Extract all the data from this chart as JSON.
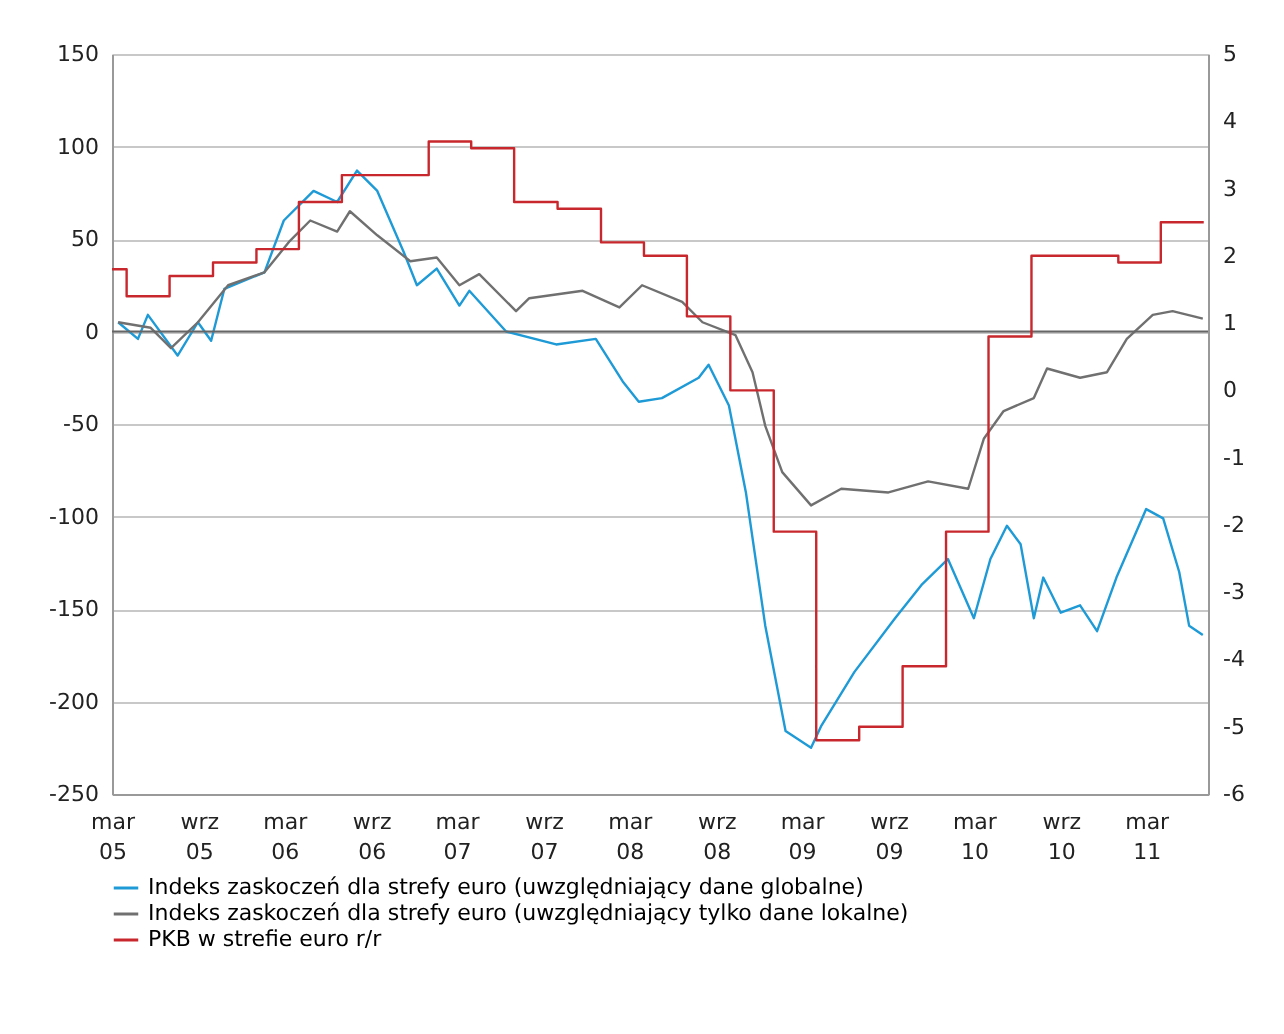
{
  "chart_data": {
    "type": "line",
    "xlim": [
      "2005-03-01",
      "2011-07-10"
    ],
    "xticks": [
      {
        "value": "2005-03-01",
        "label": "mar 05"
      },
      {
        "value": "2005-09-01",
        "label": "wrz 05"
      },
      {
        "value": "2006-03-01",
        "label": "mar 06"
      },
      {
        "value": "2006-09-01",
        "label": "wrz 06"
      },
      {
        "value": "2007-03-01",
        "label": "mar 07"
      },
      {
        "value": "2007-09-01",
        "label": "wrz 07"
      },
      {
        "value": "2008-03-01",
        "label": "mar 08"
      },
      {
        "value": "2008-09-01",
        "label": "wrz 08"
      },
      {
        "value": "2009-03-01",
        "label": "mar 09"
      },
      {
        "value": "2009-09-01",
        "label": "wrz 09"
      },
      {
        "value": "2010-03-01",
        "label": "mar 10"
      },
      {
        "value": "2010-09-01",
        "label": "wrz 10"
      },
      {
        "value": "2011-03-01",
        "label": "mar 11"
      }
    ],
    "ylim": [
      -250,
      150
    ],
    "yticks": [
      -250,
      -200,
      -150,
      -100,
      -50,
      0,
      50,
      100,
      150
    ],
    "y2lim": [
      -6,
      5
    ],
    "y2ticks": [
      -6,
      -5,
      -4,
      -3,
      -2,
      -1,
      0,
      1,
      2,
      3,
      4,
      5
    ],
    "grid": "y",
    "legend": "bottom",
    "ref_lines": [
      {
        "axis": "y",
        "value": 0,
        "color": "#666666"
      }
    ],
    "series": [
      {
        "name": "Indeks zaskoczeń dla strefy euro (uwzględniający dane globalne)",
        "color": "#1e9ad6",
        "x": [
          "2005-03-14",
          "2005-04-25",
          "2005-05-16",
          "2005-07-18",
          "2005-08-30",
          "2005-09-27",
          "2005-10-25",
          "2006-01-18",
          "2006-02-28",
          "2006-05-02",
          "2006-06-21",
          "2006-08-02",
          "2006-09-14",
          "2006-11-09",
          "2006-12-07",
          "2007-01-18",
          "2007-03-07",
          "2007-03-28",
          "2007-06-14",
          "2007-09-28",
          "2007-12-21",
          "2008-02-16",
          "2008-03-21",
          "2008-05-09",
          "2008-07-26",
          "2008-08-16",
          "2008-09-28",
          "2008-11-03",
          "2008-12-14",
          "2009-01-26",
          "2009-03-21",
          "2009-04-12",
          "2009-06-21",
          "2009-09-15",
          "2009-11-10",
          "2010-01-05",
          "2010-03-01",
          "2010-04-05",
          "2010-05-10",
          "2010-06-08",
          "2010-07-06",
          "2010-07-26",
          "2010-09-01",
          "2010-10-12",
          "2010-11-17",
          "2010-12-28",
          "2011-03-01",
          "2011-04-06",
          "2011-05-10",
          "2011-05-31",
          "2011-06-29"
        ],
        "values": [
          5,
          -4,
          9,
          -13,
          5,
          -5,
          23,
          32,
          60,
          76,
          70,
          87,
          76,
          43,
          25,
          34,
          14,
          22,
          0,
          -7,
          -4,
          -27,
          -38,
          -36,
          -25,
          -18,
          -40,
          -87,
          -159,
          -216,
          -225,
          -213,
          -184,
          -155,
          -137,
          -123,
          -155,
          -123,
          -105,
          -115,
          -155,
          -133,
          -152,
          -148,
          -162,
          -133,
          -96,
          -101,
          -130,
          -159,
          -164
        ]
      },
      {
        "name": "Indeks zaskoczeń dla strefy euro (uwzględniający tylko dane lokalne)",
        "color": "#707070",
        "x": [
          "2005-03-14",
          "2005-05-22",
          "2005-07-04",
          "2005-08-30",
          "2005-11-02",
          "2006-01-18",
          "2006-03-13",
          "2006-04-25",
          "2006-06-21",
          "2006-07-18",
          "2006-09-14",
          "2006-11-23",
          "2007-01-18",
          "2007-03-07",
          "2007-04-18",
          "2007-07-05",
          "2007-08-02",
          "2007-11-23",
          "2008-02-09",
          "2008-03-28",
          "2008-06-21",
          "2008-08-03",
          "2008-10-12",
          "2008-11-17",
          "2008-12-14",
          "2009-01-19",
          "2009-03-21",
          "2009-05-24",
          "2009-09-01",
          "2009-11-24",
          "2010-02-17",
          "2010-03-22",
          "2010-05-03",
          "2010-07-06",
          "2010-08-03",
          "2010-10-12",
          "2010-12-08",
          "2011-01-19",
          "2011-03-15",
          "2011-04-26",
          "2011-06-29"
        ],
        "values": [
          5,
          2,
          -9,
          5,
          25,
          32,
          49,
          60,
          54,
          65,
          52,
          38,
          40,
          25,
          31,
          11,
          18,
          22,
          13,
          25,
          16,
          5,
          -2,
          -22,
          -51,
          -76,
          -94,
          -85,
          -87,
          -81,
          -85,
          -58,
          -43,
          -36,
          -20,
          -25,
          -22,
          -4,
          9,
          11,
          7
        ]
      },
      {
        "name": "PKB w strefie euro r/r",
        "type": "step",
        "axis": "y2",
        "color": "#c8282d",
        "x": [
          "2005-03-01",
          "2005-04-01",
          "2005-07-01",
          "2005-10-01",
          "2006-01-01",
          "2006-04-01",
          "2006-07-01",
          "2007-01-01",
          "2007-04-01",
          "2007-07-01",
          "2007-10-01",
          "2008-01-01",
          "2008-04-01",
          "2008-07-01",
          "2008-10-01",
          "2009-01-01",
          "2009-04-01",
          "2009-07-01",
          "2009-10-01",
          "2010-01-01",
          "2010-04-01",
          "2010-07-01",
          "2011-01-01",
          "2011-04-01",
          "2011-07-01"
        ],
        "values": [
          1.8,
          1.4,
          1.7,
          1.9,
          2.1,
          2.8,
          3.2,
          3.7,
          3.6,
          2.8,
          2.7,
          2.2,
          2.0,
          1.1,
          0.0,
          -2.1,
          -5.2,
          -5.0,
          -4.1,
          -2.1,
          0.8,
          2.0,
          1.9,
          2.5,
          2.5
        ]
      }
    ]
  }
}
